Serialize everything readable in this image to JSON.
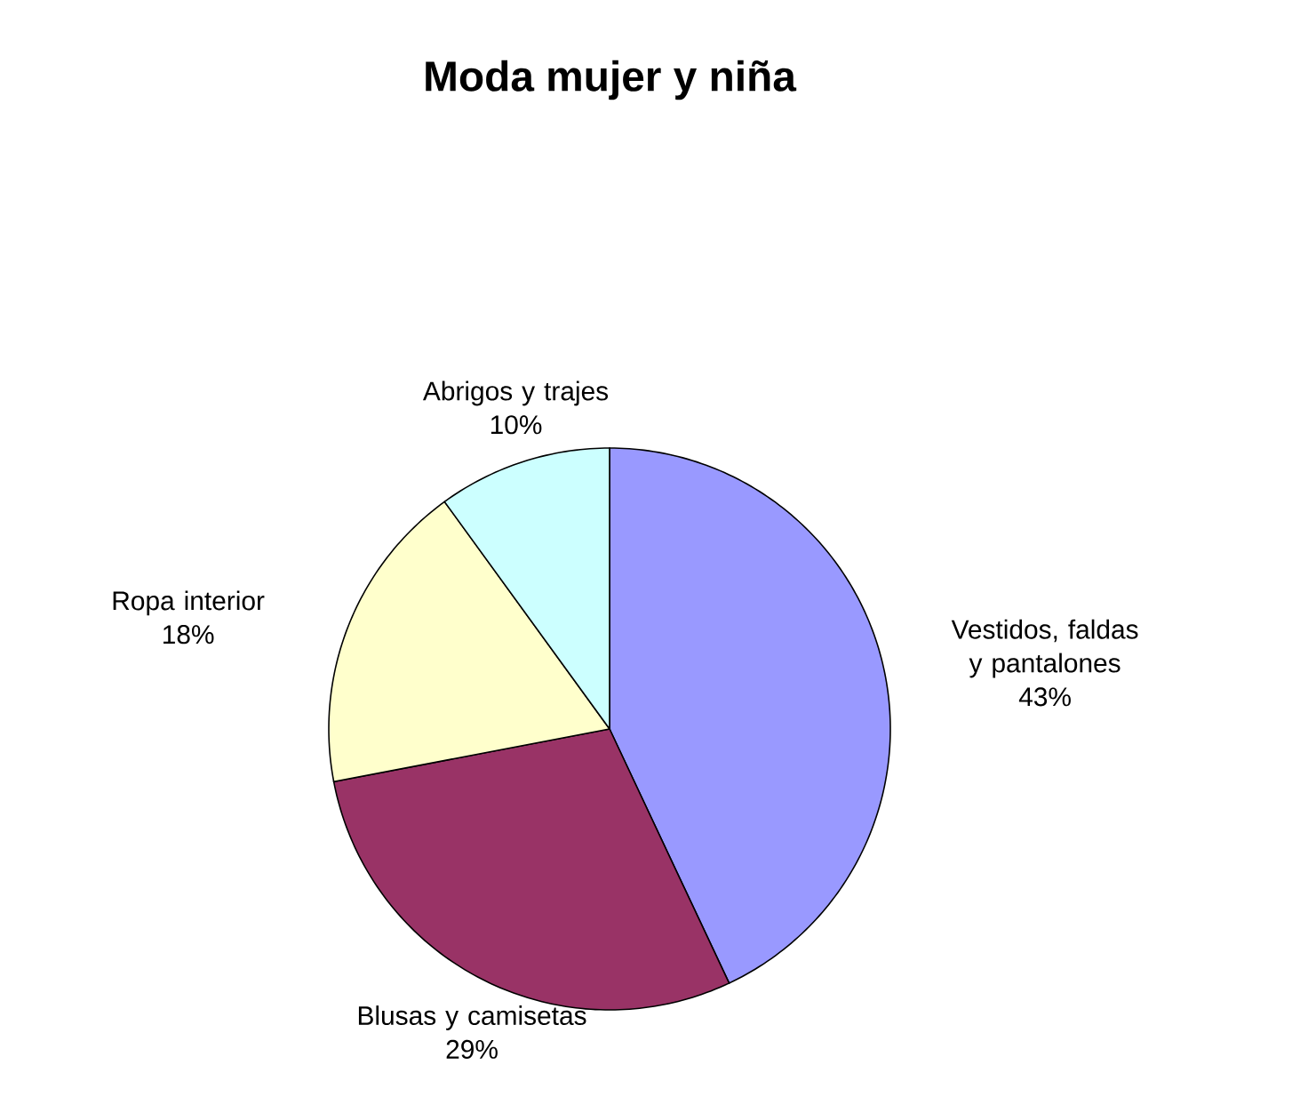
{
  "chart_data": {
    "type": "pie",
    "title": "Moda mujer y niña",
    "categories": [
      "Vestidos, faldas y pantalones",
      "Blusas y camisetas",
      "Ropa interior",
      "Abrigos y trajes"
    ],
    "values": [
      43,
      29,
      18,
      10
    ],
    "value_labels": [
      "43%",
      "29%",
      "18%",
      "10%"
    ],
    "colors": [
      "#9999ff",
      "#993366",
      "#ffffcc",
      "#ccffff"
    ]
  }
}
